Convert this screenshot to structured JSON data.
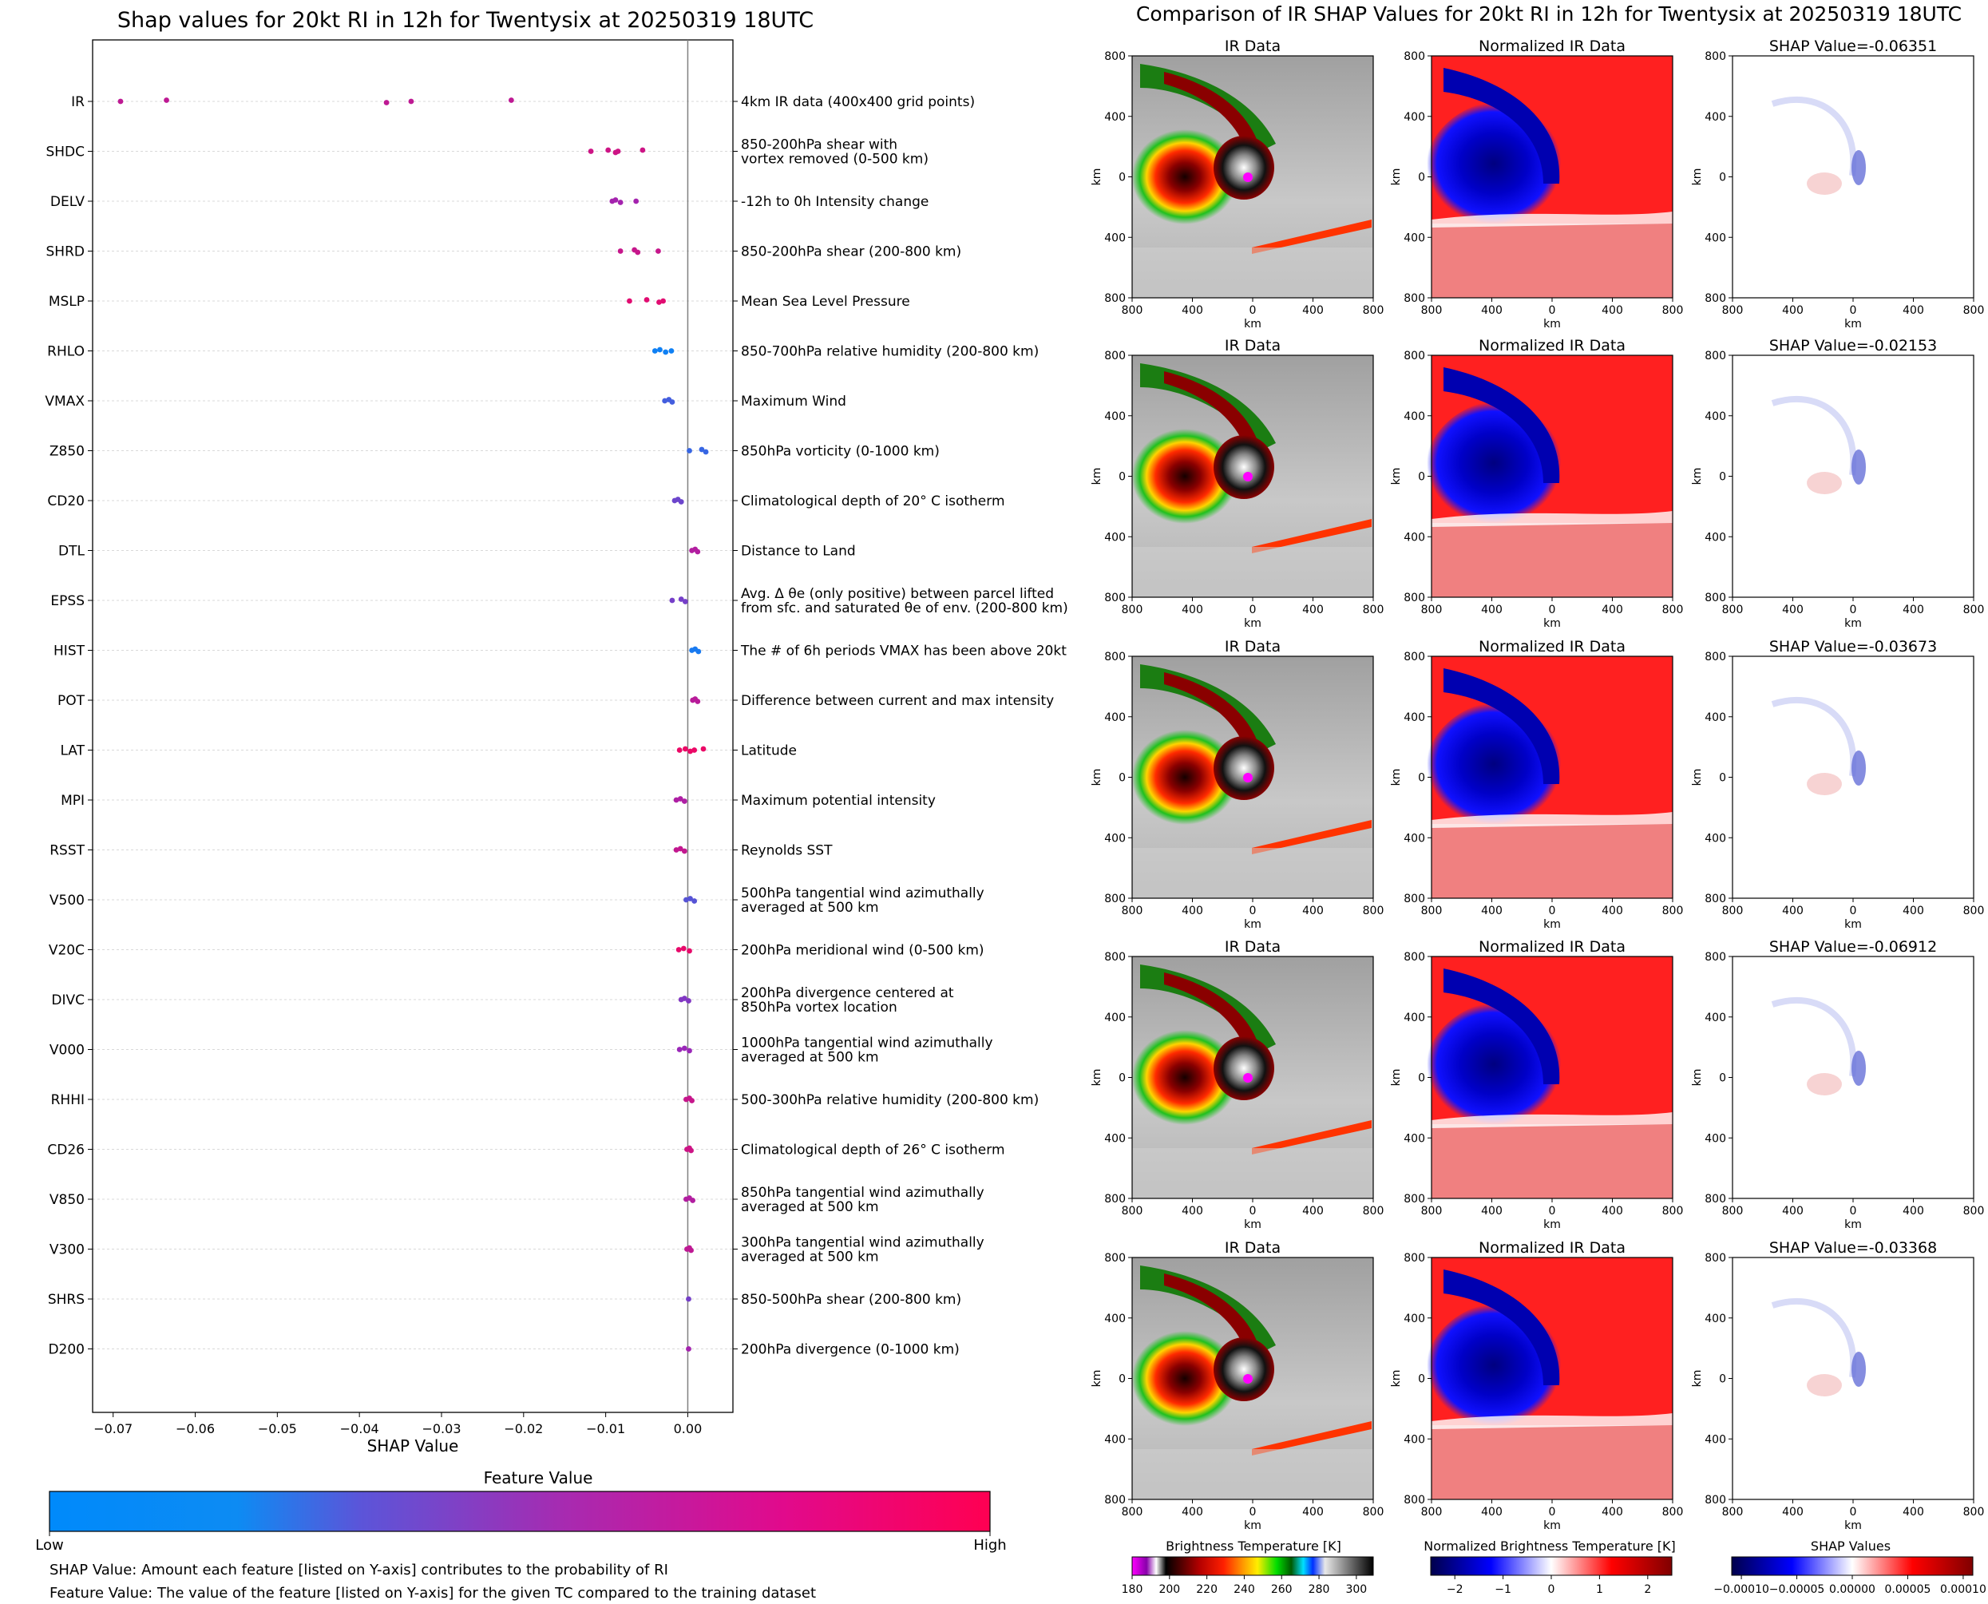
{
  "left": {
    "title": "Shap values for 20kt RI in 12h for Twentysix at 20250319 18UTC",
    "xlabel": "SHAP Value",
    "colorbar_title": "Feature Value",
    "colorbar_low": "Low",
    "colorbar_high": "High",
    "note1": "SHAP Value: Amount each feature [listed on Y-axis] contributes to the probability of RI",
    "note2": "Feature Value: The value of the feature [listed on Y-axis] for the given TC compared to the training dataset"
  },
  "right": {
    "title": "Comparison of IR SHAP Values for 20kt RI in 12h for Twentysix at 20250319 18UTC",
    "col1_title": "IR Data",
    "col2_title": "Normalized IR Data",
    "shap_prefix": "SHAP Value=",
    "axis_unit": "km",
    "tick_labels": [
      "800",
      "400",
      "0",
      "400",
      "800"
    ],
    "cbar1_title": "Brightness Temperature [K]",
    "cbar1_ticks": [
      "180",
      "200",
      "220",
      "240",
      "260",
      "280",
      "300"
    ],
    "cbar2_title": "Normalized Brightness Temperature [K]",
    "cbar2_ticks": [
      "−2",
      "−1",
      "0",
      "1",
      "2"
    ],
    "cbar3_title": "SHAP Values",
    "cbar3_ticks": [
      "−0.00010",
      "−0.00005",
      "0.00000",
      "0.00005",
      "0.00010"
    ],
    "rows": [
      {
        "shap": "-0.06351"
      },
      {
        "shap": "-0.02153"
      },
      {
        "shap": "-0.03673"
      },
      {
        "shap": "-0.06912"
      },
      {
        "shap": "-0.03368"
      }
    ]
  },
  "colors": {
    "low": "#008afb",
    "mid": "#9a27b8",
    "high": "#ff0052"
  },
  "chart_data": {
    "type": "scatter",
    "title": "Shap values for 20kt RI in 12h for Twentysix at 20250319 18UTC",
    "xlabel": "SHAP Value",
    "xlim": [
      -0.0725,
      0.0055
    ],
    "xticks": [
      -0.07,
      -0.06,
      -0.05,
      -0.04,
      -0.03,
      -0.02,
      -0.01,
      0.0
    ],
    "xtick_labels": [
      "−0.07",
      "−0.06",
      "−0.05",
      "−0.04",
      "−0.03",
      "−0.02",
      "−0.01",
      "0.00"
    ],
    "features": [
      {
        "name": "IR",
        "desc": [
          "4km IR data (400x400 grid points)"
        ],
        "c": 0.68,
        "values": [
          -0.0691,
          -0.0635,
          -0.0367,
          -0.0337,
          -0.0215
        ]
      },
      {
        "name": "SHDC",
        "desc": [
          "850-200hPa shear with",
          "vortex removed (0-500 km)"
        ],
        "c": 0.75,
        "values": [
          -0.0118,
          -0.0097,
          -0.0088,
          -0.0085,
          -0.0055
        ]
      },
      {
        "name": "DELV",
        "desc": [
          "-12h to 0h Intensity change"
        ],
        "c": 0.55,
        "values": [
          -0.0092,
          -0.0088,
          -0.0082,
          -0.0063
        ]
      },
      {
        "name": "SHRD",
        "desc": [
          "850-200hPa shear (200-800 km)"
        ],
        "c": 0.72,
        "values": [
          -0.0082,
          -0.0065,
          -0.0061,
          -0.0036
        ]
      },
      {
        "name": "MSLP",
        "desc": [
          "Mean Sea Level Pressure"
        ],
        "c": 0.85,
        "values": [
          -0.0071,
          -0.005,
          -0.0035,
          -0.003
        ]
      },
      {
        "name": "RHLO",
        "desc": [
          "850-700hPa relative humidity (200-800 km)"
        ],
        "c": 0.05,
        "values": [
          -0.004,
          -0.0034,
          -0.0027,
          -0.002
        ]
      },
      {
        "name": "VMAX",
        "desc": [
          "Maximum Wind"
        ],
        "c": 0.22,
        "values": [
          -0.0028,
          -0.0023,
          -0.0019
        ]
      },
      {
        "name": "Z850",
        "desc": [
          "850hPa vorticity (0-1000 km)"
        ],
        "c": 0.18,
        "values": [
          0.0002,
          0.0017,
          0.0022
        ]
      },
      {
        "name": "CD20",
        "desc": [
          "Climatological depth of 20° C isotherm"
        ],
        "c": 0.35,
        "values": [
          -0.0016,
          -0.0012,
          -0.0008
        ]
      },
      {
        "name": "DTL",
        "desc": [
          "Distance to Land"
        ],
        "c": 0.62,
        "values": [
          0.0005,
          0.0009,
          0.0012
        ]
      },
      {
        "name": "EPSS",
        "desc": [
          "Avg. Δ θe (only positive) between parcel lifted",
          "from sfc. and saturated θe of env. (200-800 km)"
        ],
        "c": 0.38,
        "values": [
          -0.0019,
          -0.0008,
          -0.0003
        ]
      },
      {
        "name": "HIST",
        "desc": [
          "The # of 6h periods VMAX has been above 20kt"
        ],
        "c": 0.08,
        "values": [
          0.0005,
          0.0009,
          0.0013
        ]
      },
      {
        "name": "POT",
        "desc": [
          "Difference between current and max intensity"
        ],
        "c": 0.65,
        "values": [
          0.0006,
          0.0009,
          0.0012
        ]
      },
      {
        "name": "LAT",
        "desc": [
          "Latitude"
        ],
        "c": 0.9,
        "values": [
          -0.001,
          -0.0003,
          0.0003,
          0.0008,
          0.0019
        ]
      },
      {
        "name": "MPI",
        "desc": [
          "Maximum potential intensity"
        ],
        "c": 0.6,
        "values": [
          -0.0014,
          -0.0009,
          -0.0004
        ]
      },
      {
        "name": "RSST",
        "desc": [
          "Reynolds SST"
        ],
        "c": 0.7,
        "values": [
          -0.0014,
          -0.0009,
          -0.0004
        ]
      },
      {
        "name": "V500",
        "desc": [
          "500hPa tangential wind azimuthally",
          "averaged at 500 km"
        ],
        "c": 0.28,
        "values": [
          -0.0002,
          0.0003,
          0.0008
        ]
      },
      {
        "name": "V20C",
        "desc": [
          "200hPa meridional wind (0-500 km)"
        ],
        "c": 0.88,
        "values": [
          -0.0011,
          -0.0005,
          0.0002
        ]
      },
      {
        "name": "DIVC",
        "desc": [
          "200hPa divergence centered at",
          "850hPa vortex location"
        ],
        "c": 0.42,
        "values": [
          -0.0008,
          -0.0004,
          0.0001
        ]
      },
      {
        "name": "V000",
        "desc": [
          "1000hPa tangential wind azimuthally",
          "averaged at 500 km"
        ],
        "c": 0.5,
        "values": [
          -0.001,
          -0.0004,
          0.0002
        ]
      },
      {
        "name": "RHHI",
        "desc": [
          "500-300hPa relative humidity (200-800 km)"
        ],
        "c": 0.72,
        "values": [
          -0.0002,
          0.0002,
          0.0005
        ]
      },
      {
        "name": "CD26",
        "desc": [
          "Climatological depth of 26° C isotherm"
        ],
        "c": 0.75,
        "values": [
          -0.0001,
          0.0002,
          0.0004
        ]
      },
      {
        "name": "V850",
        "desc": [
          "850hPa tangential wind azimuthally",
          "averaged at 500 km"
        ],
        "c": 0.62,
        "values": [
          -0.0002,
          0.0002,
          0.0006
        ]
      },
      {
        "name": "V300",
        "desc": [
          "300hPa tangential wind azimuthally",
          "averaged at 500 km"
        ],
        "c": 0.68,
        "values": [
          -0.0001,
          0.0002,
          0.0004
        ]
      },
      {
        "name": "SHRS",
        "desc": [
          "850-500hPa shear (200-800 km)"
        ],
        "c": 0.38,
        "values": [
          0.0001
        ]
      },
      {
        "name": "D200",
        "desc": [
          "200hPa divergence (0-1000 km)"
        ],
        "c": 0.55,
        "values": [
          0.0001
        ]
      }
    ]
  }
}
